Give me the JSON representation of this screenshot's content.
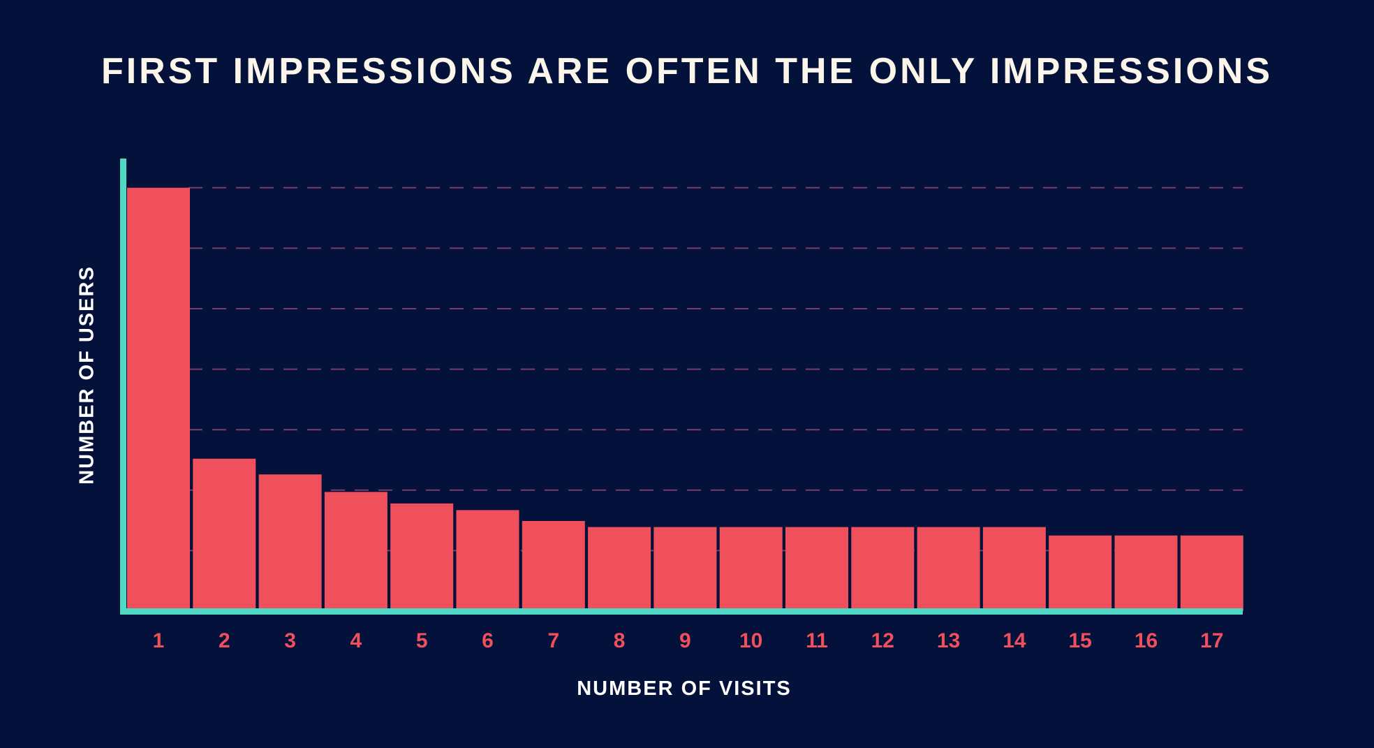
{
  "chart_data": {
    "type": "bar",
    "title": "FIRST IMPRESSIONS ARE OFTEN THE ONLY IMPRESSIONS",
    "xlabel": "NUMBER OF VISITS",
    "ylabel": "NUMBER OF USERS",
    "categories": [
      "1",
      "2",
      "3",
      "4",
      "5",
      "6",
      "7",
      "8",
      "9",
      "10",
      "11",
      "12",
      "13",
      "14",
      "15",
      "16",
      "17"
    ],
    "values": [
      7.0,
      2.52,
      2.26,
      1.97,
      1.78,
      1.67,
      1.49,
      1.39,
      1.39,
      1.39,
      1.39,
      1.39,
      1.39,
      1.39,
      1.25,
      1.25,
      1.25
    ],
    "ylim": [
      0,
      7
    ],
    "grid": true,
    "y_tick_labels_shown": false,
    "colors": {
      "background": "#04123b",
      "bar": "#f0505b",
      "axis": "#4fd8c4",
      "grid": "#7b3b6b",
      "tick_label": "#f0505b",
      "title": "#fbf6e9"
    }
  }
}
